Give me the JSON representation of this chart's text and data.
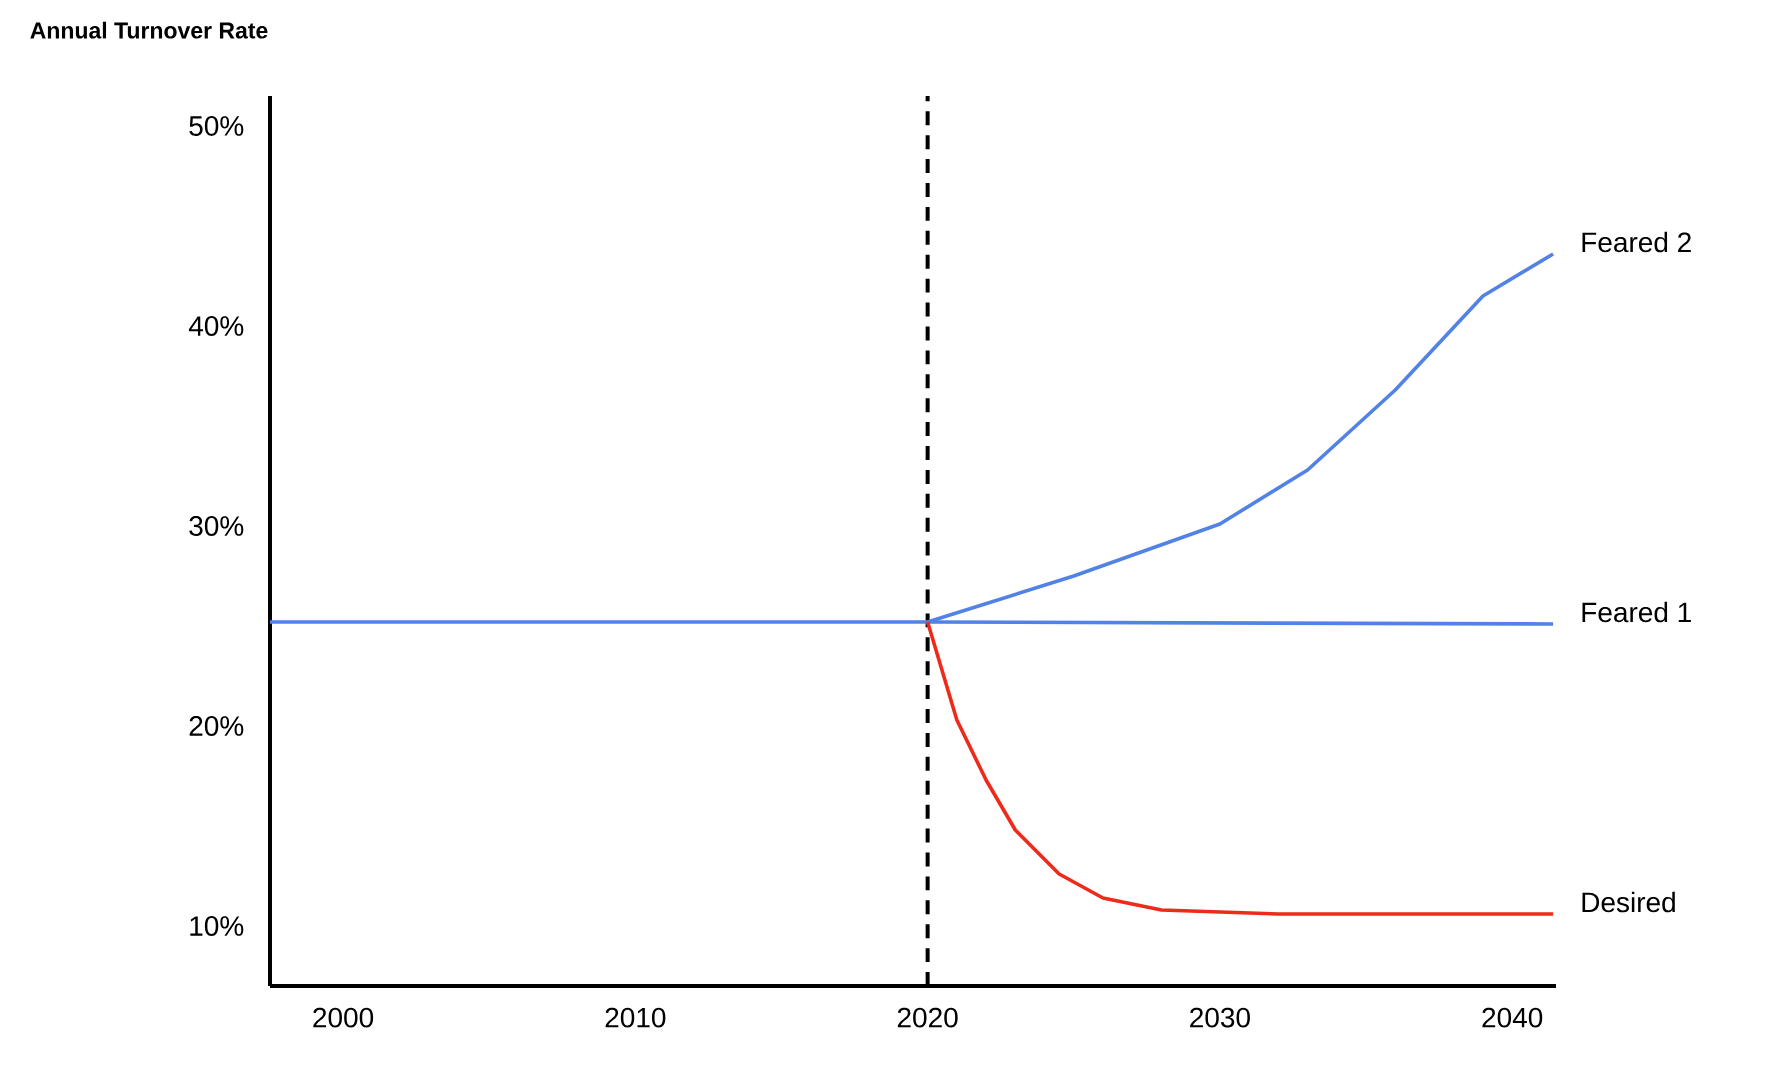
{
  "chart_data": {
    "type": "line",
    "title": "Annual Turnover Rate",
    "xlim": [
      1997.5,
      2041.5
    ],
    "ylim": [
      7,
      51.5
    ],
    "xticks": [
      2000,
      2010,
      2020,
      2030,
      2040
    ],
    "yticks": [
      {
        "value": 10,
        "label": "10%"
      },
      {
        "value": 20,
        "label": "20%"
      },
      {
        "value": 30,
        "label": "30%"
      },
      {
        "value": 40,
        "label": "40%"
      },
      {
        "value": 50,
        "label": "50%"
      }
    ],
    "grid": false,
    "series": [
      {
        "name": "Feared 2",
        "color": "#5282e6",
        "x": [
          2020,
          2025,
          2030,
          2033,
          2036,
          2039,
          2041.4
        ],
        "values": [
          25.2,
          27.5,
          30.1,
          32.8,
          36.8,
          41.5,
          43.6
        ]
      },
      {
        "name": "Feared 1",
        "color": "#5282e6",
        "x": [
          1997.5,
          2020,
          2041.4
        ],
        "values": [
          25.2,
          25.2,
          25.1
        ]
      },
      {
        "name": "Desired",
        "color": "#ee2a1a",
        "x": [
          2020,
          2021,
          2022,
          2023,
          2024.5,
          2026,
          2028,
          2032,
          2041.4
        ],
        "values": [
          25.2,
          20.3,
          17.3,
          14.8,
          12.6,
          11.4,
          10.8,
          10.6,
          10.6
        ]
      }
    ],
    "ref_lines": [
      {
        "axis": "x",
        "value": 2020,
        "color": "#000000",
        "line_style": "dashed"
      }
    ]
  }
}
